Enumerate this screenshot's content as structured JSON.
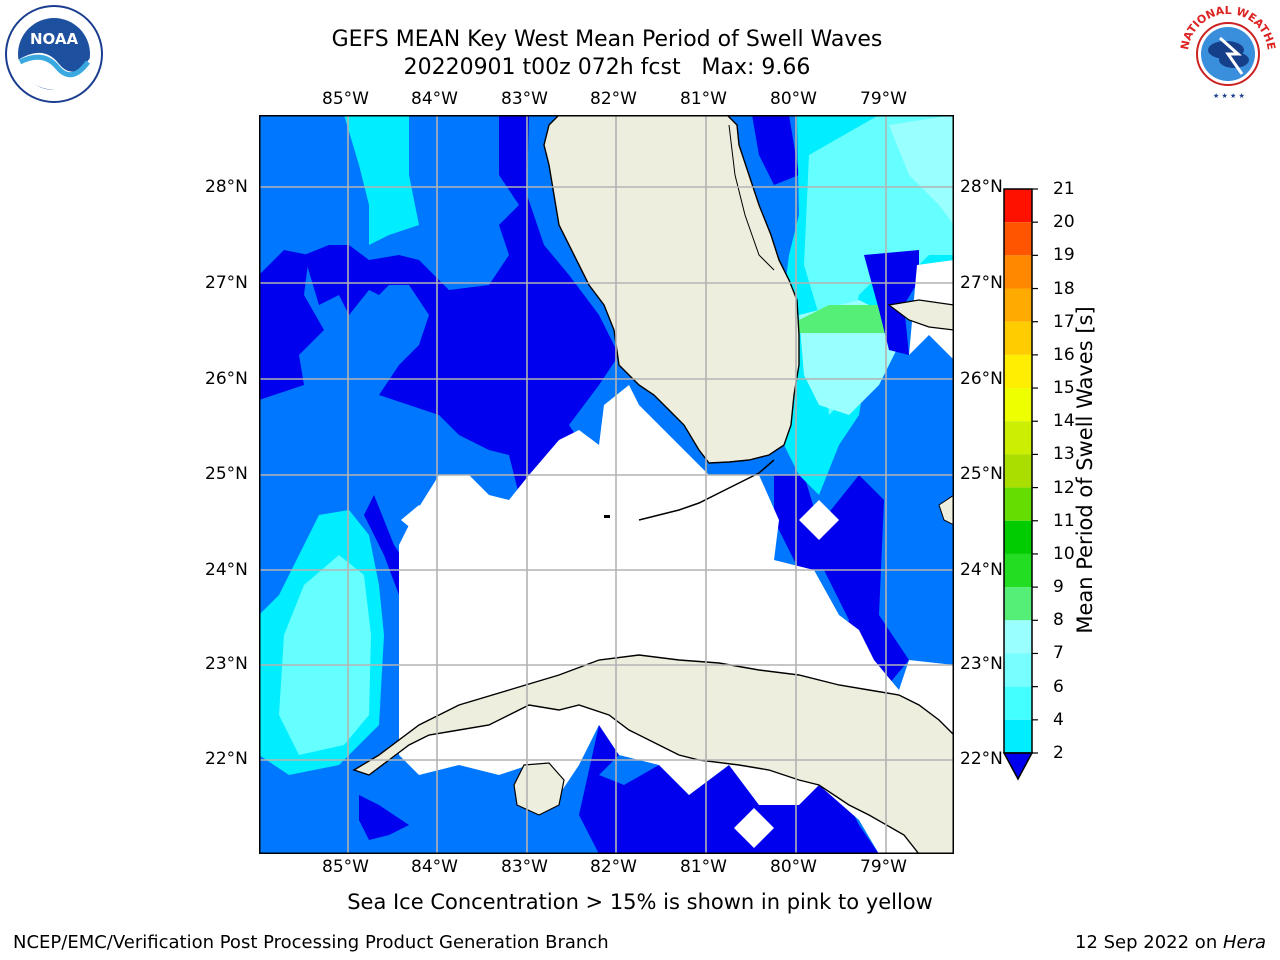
{
  "header": {
    "title_line1": "GEFS MEAN Key West Mean Period of Swell Waves",
    "title_line2": "20220901 t00z 072h fcst   Max: 9.66"
  },
  "logos": {
    "left": {
      "name": "NOAA",
      "text": "NOAA"
    },
    "right": {
      "name": "National Weather Service",
      "text": "NATIONAL WEATHER SERVICE"
    }
  },
  "map": {
    "lon_labels": [
      "85°W",
      "84°W",
      "83°W",
      "82°W",
      "81°W",
      "80°W",
      "79°W"
    ],
    "lat_labels": [
      "28°N",
      "27°N",
      "26°N",
      "25°N",
      "24°N",
      "23°N",
      "22°N"
    ],
    "colors": {
      "ocean_dark": "#0000ee",
      "ocean_mid": "#0077ff",
      "cyan": "#00eeff",
      "light_cyan": "#66ffff",
      "pale_cyan": "#99ffff",
      "green": "#55ee77",
      "land": "#eeeede",
      "grid": "#b3b3b3"
    }
  },
  "colorbar": {
    "label": "Mean Period of Swell Waves [s]",
    "ticks": [
      "2",
      "4",
      "6",
      "7",
      "8",
      "9",
      "10",
      "11",
      "12",
      "13",
      "14",
      "15",
      "16",
      "17",
      "18",
      "19",
      "20",
      "21"
    ],
    "colors": [
      "#0077ff",
      "#00eeff",
      "#44ffff",
      "#77ffff",
      "#99ffff",
      "#55ee77",
      "#22dd22",
      "#00cc00",
      "#66dd00",
      "#aadd00",
      "#ccee00",
      "#eeff00",
      "#ffee00",
      "#ffcc00",
      "#ffaa00",
      "#ff8800",
      "#ff5500",
      "#ff1100"
    ],
    "under_color": "#0000ee"
  },
  "footer": {
    "note": "Sea Ice Concentration > 15% is shown in pink to yellow",
    "left": "NCEP/EMC/Verification Post Processing Product Generation Branch",
    "right_prefix": "12 Sep 2022 on ",
    "right_host": "Hera"
  }
}
